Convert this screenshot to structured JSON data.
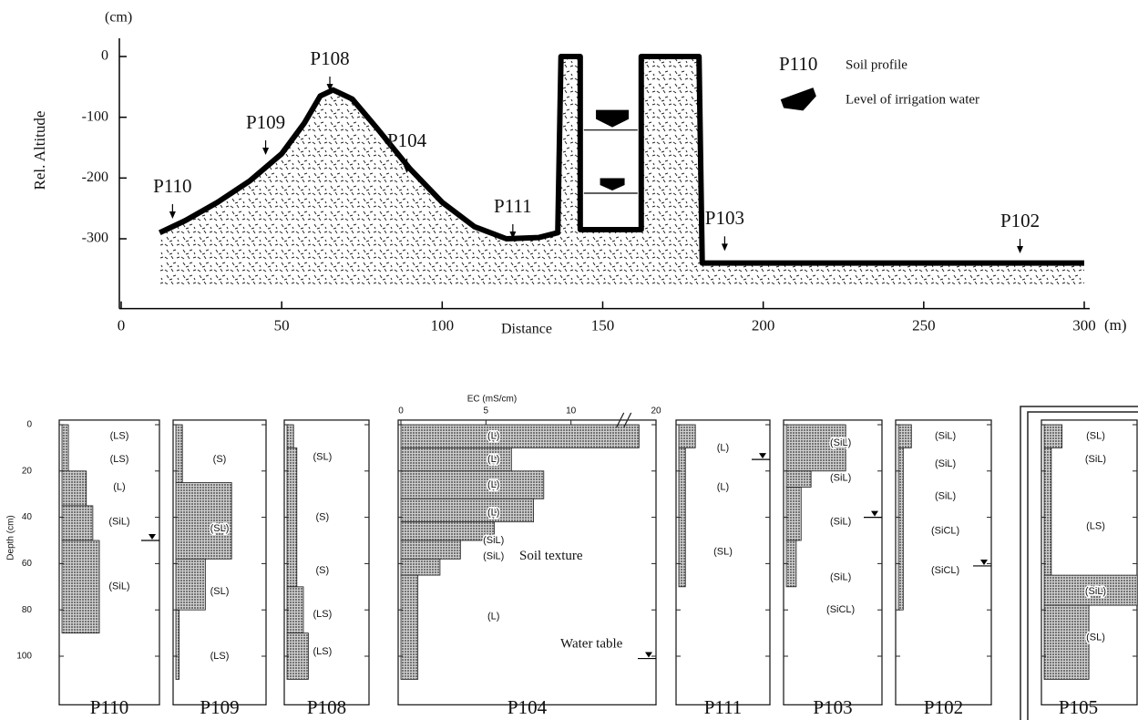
{
  "chart_data": [
    {
      "type": "line",
      "ylabel": "Rel. Altitude",
      "y_unit": "(cm)",
      "xlabel": "Distance",
      "x_unit": "(m)",
      "xlim": [
        0,
        300
      ],
      "xticks": [
        0,
        50,
        100,
        150,
        200,
        250,
        300
      ],
      "ylim": [
        -415,
        30
      ],
      "yticks": [
        0,
        -100,
        -200,
        -300
      ],
      "color": "#000000",
      "x": [
        12,
        20,
        30,
        40,
        50,
        57,
        62,
        66,
        72,
        80,
        90,
        100,
        110,
        120,
        130,
        136,
        137,
        143,
        143,
        162,
        162,
        180,
        181,
        300
      ],
      "values": [
        -290,
        -270,
        -240,
        -205,
        -160,
        -110,
        -65,
        -55,
        -70,
        -120,
        -185,
        -240,
        -280,
        -300,
        -298,
        -290,
        0,
        0,
        -285,
        -285,
        0,
        0,
        -340,
        -340
      ],
      "profiles": {
        "labels": [
          "P110",
          "P109",
          "P108",
          "P104",
          "P111",
          "P103",
          "P102"
        ],
        "x": [
          16,
          45,
          65,
          89,
          122,
          188,
          280
        ],
        "y": [
          -267,
          -162,
          -57,
          -192,
          -300,
          -320,
          -324
        ]
      },
      "irrigation_levels": {
        "x": 153,
        "values": [
          -121,
          -225
        ]
      },
      "legend": {
        "profile_label": "P110",
        "profile_text": "Soil profile",
        "water_text": "Level of irrigation water",
        "position": "upper right"
      }
    },
    {
      "type": "profile",
      "title": "P110",
      "ylabel": "Depth (cm)",
      "xlim": [
        0,
        6
      ],
      "ylim": [
        -2,
        121
      ],
      "yticks": [
        0,
        20,
        40,
        60,
        80,
        100
      ],
      "show_ytick_labels": true,
      "depth_top": [
        0,
        20,
        35,
        50
      ],
      "depth_bottom": [
        20,
        35,
        50,
        90
      ],
      "values": [
        0.4,
        1.5,
        1.9,
        2.3
      ],
      "texture_labels": [
        "(LS)",
        "(LS)",
        "(L)",
        "(SiL)",
        "(SiL)"
      ],
      "texture_depths": [
        5,
        15,
        27,
        42,
        70
      ],
      "water_table": 50
    },
    {
      "type": "profile",
      "title": "P109",
      "xlim": [
        0,
        5.5
      ],
      "ylim": [
        -2,
        121
      ],
      "yticks": [
        0,
        20,
        40,
        60,
        80,
        100
      ],
      "show_ytick_labels": false,
      "depth_top": [
        0,
        25,
        58,
        80
      ],
      "depth_bottom": [
        25,
        58,
        80,
        110
      ],
      "values": [
        0.4,
        3.4,
        1.8,
        0.2
      ],
      "texture_labels": [
        "(S)",
        "(SL)",
        "(SL)",
        "(LS)"
      ],
      "texture_depths": [
        15,
        45,
        72,
        100
      ]
    },
    {
      "type": "profile",
      "title": "P108",
      "xlim": [
        0,
        5
      ],
      "ylim": [
        -2,
        121
      ],
      "yticks": [
        0,
        20,
        40,
        60,
        80,
        100
      ],
      "show_ytick_labels": false,
      "depth_top": [
        0,
        10,
        70,
        90
      ],
      "depth_bottom": [
        10,
        70,
        90,
        110
      ],
      "values": [
        0.4,
        0.6,
        1.0,
        1.3
      ],
      "texture_labels": [
        "(SL)",
        "(S)",
        "(S)",
        "(LS)",
        "(LS)"
      ],
      "texture_depths": [
        14,
        40,
        63,
        82,
        98
      ]
    },
    {
      "type": "profile",
      "title": "P104",
      "xlabel": "EC (mS/cm)",
      "xlim": [
        0,
        20
      ],
      "xticks": [
        0,
        5,
        10,
        20
      ],
      "axis_break": [
        13,
        18
      ],
      "ylim": [
        -2,
        121
      ],
      "yticks": [
        0,
        20,
        40,
        60,
        80,
        100
      ],
      "show_ytick_labels": false,
      "depth_top": [
        0,
        10,
        20,
        32,
        42,
        50,
        58,
        65
      ],
      "depth_bottom": [
        10,
        20,
        32,
        42,
        50,
        58,
        65,
        110
      ],
      "values": [
        19,
        6.5,
        8.4,
        7.8,
        5.5,
        3.5,
        2.3,
        1.0
      ],
      "texture_labels": [
        "(L)",
        "(L)",
        "(L)",
        "(L)",
        "(SiL)",
        "(SiL)",
        "(L)"
      ],
      "texture_depths": [
        5,
        15,
        26,
        38,
        50,
        57,
        83
      ],
      "water_table": 101,
      "annotations": [
        {
          "text": "Soil texture",
          "depth": 57
        },
        {
          "text": "Water table",
          "depth": 95
        }
      ]
    },
    {
      "type": "profile",
      "title": "P111",
      "xlim": [
        0,
        5.5
      ],
      "ylim": [
        -2,
        121
      ],
      "yticks": [
        0,
        20,
        40,
        60,
        80,
        100
      ],
      "show_ytick_labels": false,
      "depth_top": [
        0,
        10
      ],
      "depth_bottom": [
        10,
        70
      ],
      "values": [
        1.0,
        0.4
      ],
      "texture_labels": [
        "(L)",
        "(L)",
        "(SL)"
      ],
      "texture_depths": [
        10,
        27,
        55
      ],
      "water_table": 15
    },
    {
      "type": "profile",
      "title": "P103",
      "xlim": [
        0,
        5.8
      ],
      "ylim": [
        -2,
        121
      ],
      "yticks": [
        0,
        20,
        40,
        60,
        80,
        100
      ],
      "show_ytick_labels": false,
      "depth_top": [
        0,
        20,
        27,
        50
      ],
      "depth_bottom": [
        20,
        27,
        50,
        70
      ],
      "values": [
        3.6,
        1.5,
        0.9,
        0.6
      ],
      "texture_labels": [
        "(SiL)",
        "(SiL)",
        "(SiL)",
        "(SiL)",
        "(SiCL)"
      ],
      "texture_depths": [
        8,
        23,
        42,
        66,
        80
      ],
      "water_table": 40
    },
    {
      "type": "profile",
      "title": "P102",
      "xlim": [
        0,
        5.7
      ],
      "ylim": [
        -2,
        121
      ],
      "yticks": [
        0,
        20,
        40,
        60,
        80,
        100
      ],
      "show_ytick_labels": false,
      "depth_top": [
        0,
        10
      ],
      "depth_bottom": [
        10,
        80
      ],
      "values": [
        0.8,
        0.3
      ],
      "texture_labels": [
        "(SiL)",
        "(SiL)",
        "(SiL)",
        "(SiCL)",
        "(SiCL)"
      ],
      "texture_depths": [
        5,
        17,
        31,
        46,
        63
      ],
      "water_table": 61
    },
    {
      "type": "profile",
      "title": "P105",
      "xlim": [
        0,
        5.9
      ],
      "ylim": [
        -2,
        121
      ],
      "yticks": [
        0,
        20,
        40,
        60,
        80,
        100
      ],
      "show_ytick_labels": false,
      "depth_top": [
        0,
        10,
        65,
        78
      ],
      "depth_bottom": [
        10,
        65,
        78,
        110
      ],
      "values": [
        1.0,
        0.4,
        5.2,
        2.5
      ],
      "texture_labels": [
        "(SL)",
        "(SiL)",
        "(LS)",
        "(SiL)",
        "(SL)"
      ],
      "texture_depths": [
        5,
        15,
        44,
        72,
        92
      ]
    }
  ]
}
